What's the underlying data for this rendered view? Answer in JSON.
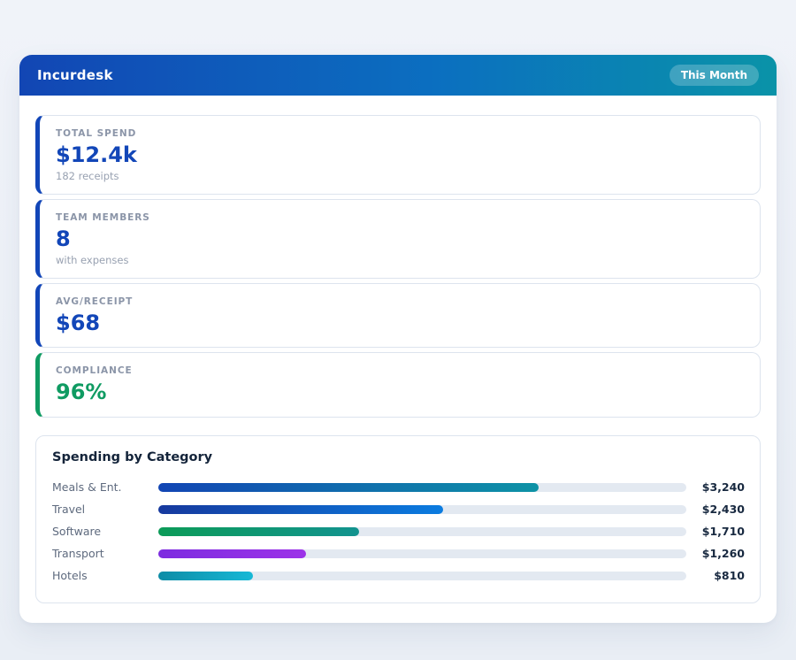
{
  "colors": {
    "page_bg": "#eef1f7",
    "panel_bg": "#ffffff",
    "header_gradient_start": "#1246b4",
    "header_gradient_end": "#0a93a8",
    "card_border": "#dde4ee",
    "accent_blue": "#1246b8",
    "accent_green": "#0f9b62",
    "bar_track": "#e3e9f1"
  },
  "header": {
    "title": "Incurdesk",
    "period_badge": "This Month"
  },
  "stats": [
    {
      "label": "TOTAL SPEND",
      "value": "$12.4k",
      "sub": "182 receipts",
      "accent": "#1246b8"
    },
    {
      "label": "TEAM MEMBERS",
      "value": "8",
      "sub": "with expenses",
      "accent": "#1246b8"
    },
    {
      "label": "AVG/RECEIPT",
      "value": "$68",
      "sub": "",
      "accent": "#1246b8"
    },
    {
      "label": "COMPLIANCE",
      "value": "96%",
      "sub": "",
      "accent": "#0f9b62"
    }
  ],
  "chart_data": {
    "type": "bar",
    "orientation": "horizontal",
    "title": "Spending by Category",
    "categories": [
      "Meals & Ent.",
      "Travel",
      "Software",
      "Transport",
      "Hotels"
    ],
    "values": [
      3240,
      2430,
      1710,
      1260,
      810
    ],
    "value_labels": [
      "$3,240",
      "$2,430",
      "$1,710",
      "$1,260",
      "$810"
    ],
    "axis_max": 4500,
    "grid": false,
    "legend": false,
    "bar_gradients": [
      [
        "#1245b4",
        "#0e93a6"
      ],
      [
        "#16399e",
        "#0b7ce0"
      ],
      [
        "#0c9b58",
        "#12938f"
      ],
      [
        "#7d2ce0",
        "#9c32e8"
      ],
      [
        "#0d8ca6",
        "#16b8d6"
      ]
    ]
  }
}
